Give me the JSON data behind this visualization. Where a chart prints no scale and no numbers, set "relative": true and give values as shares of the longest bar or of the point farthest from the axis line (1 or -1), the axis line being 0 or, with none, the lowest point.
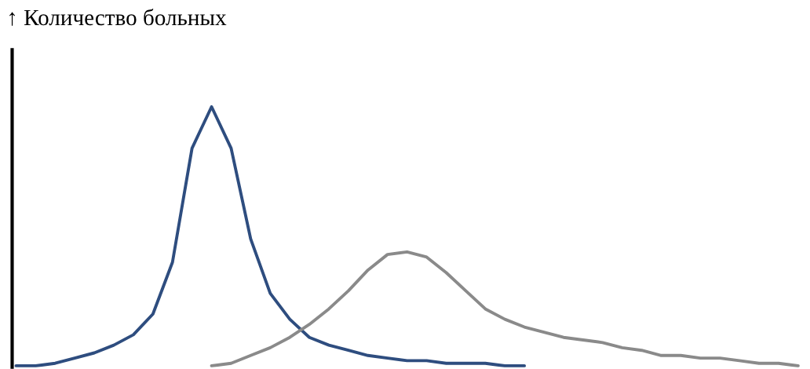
{
  "chart_data": {
    "type": "line",
    "title": "↑ Количество больных",
    "relative": true,
    "grid": false,
    "marker": "none",
    "line_style": "solid",
    "categories": [
      null,
      null,
      null,
      null,
      null,
      null,
      null,
      null,
      null,
      null,
      null,
      null,
      null,
      null,
      null,
      null,
      null,
      null,
      null,
      null,
      null,
      null,
      null,
      null,
      null,
      null,
      null,
      null,
      null,
      null,
      null,
      null,
      null,
      null,
      null,
      null,
      null,
      null,
      null,
      null,
      null
    ],
    "series": [
      {
        "color": "#2e4d7f",
        "values": [
          0,
          0.0,
          0.01,
          0.03,
          0.05,
          0.08,
          0.12,
          0.2,
          0.4,
          0.84,
          1,
          0.84,
          0.49,
          0.28,
          0.18,
          0.11,
          0.08,
          0.06,
          0.04,
          0.03,
          0.02,
          0.02,
          0.01,
          0.01,
          0.01,
          0.0,
          0,
          null,
          null,
          null,
          null,
          null,
          null,
          null,
          null,
          null,
          null,
          null,
          null,
          null,
          null
        ]
      },
      {
        "color": "#8a8a8a",
        "values": [
          null,
          null,
          null,
          null,
          null,
          null,
          null,
          null,
          null,
          null,
          0,
          0.01,
          0.04,
          0.07,
          0.11,
          0.16,
          0.22,
          0.29,
          0.37,
          0.43,
          0.44,
          0.42,
          0.36,
          0.29,
          0.22,
          0.18,
          0.15,
          0.13,
          0.11,
          0.1,
          0.09,
          0.07,
          0.06,
          0.04,
          0.04,
          0.03,
          0.03,
          0.02,
          0.01,
          0.01,
          0
        ]
      }
    ]
  }
}
